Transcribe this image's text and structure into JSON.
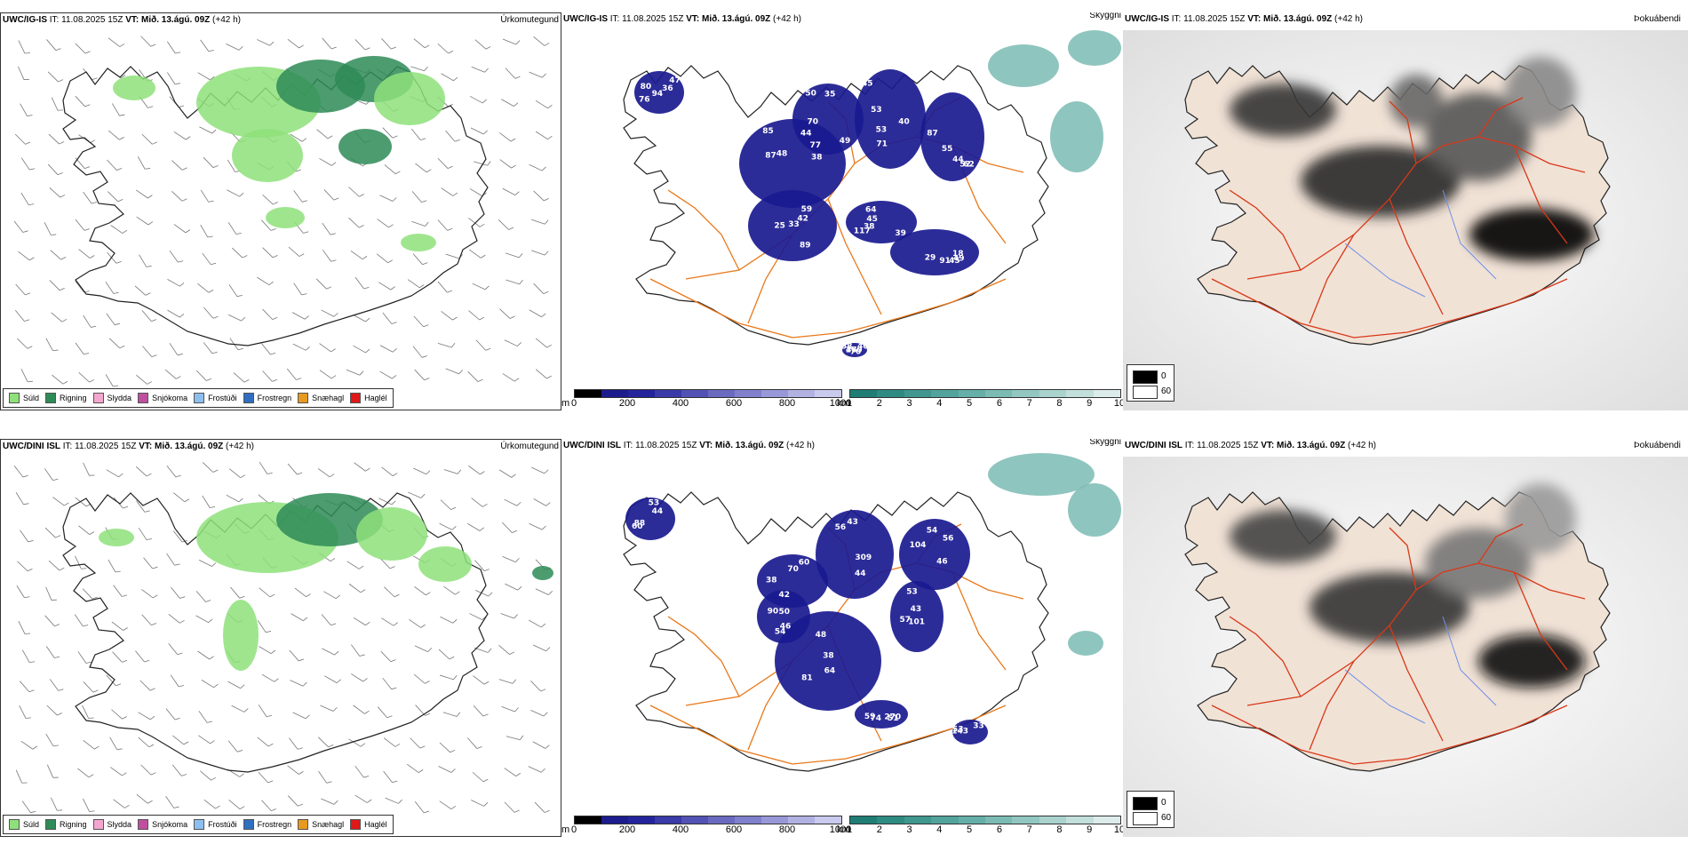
{
  "colors": {
    "drizzle": "#8ee07a",
    "rain": "#2e8b57",
    "sleet": "#f3a7d0",
    "snow": "#c04fa0",
    "freezing_drizzle": "#8cbff0",
    "freezing_rain": "#2f6fc0",
    "snow_pellets": "#e89a20",
    "hail": "#e01818",
    "cloud_dark": "#1a1a90",
    "road_orange": "#e8781a",
    "road_red": "#d83818",
    "river_blue": "#6f8fe8",
    "land_fog": "#f1e2d6"
  },
  "precip_legend": [
    {
      "label": "Súld",
      "color": "#8ee07a"
    },
    {
      "label": "Rigning",
      "color": "#2e8b57"
    },
    {
      "label": "Slydda",
      "color": "#f3a7d0"
    },
    {
      "label": "Snjókoma",
      "color": "#c04fa0"
    },
    {
      "label": "Frostúði",
      "color": "#8cbff0"
    },
    {
      "label": "Frostregn",
      "color": "#2f6fc0"
    },
    {
      "label": "Snæhagl",
      "color": "#e89a20"
    },
    {
      "label": "Haglél",
      "color": "#e01818"
    }
  ],
  "cloud_base_bar": {
    "unit": "m",
    "ticks": [
      "0",
      "200",
      "400",
      "600",
      "800",
      "1000"
    ],
    "colors": [
      "#000000",
      "#1c1c8c",
      "#24249c",
      "#3a3aa8",
      "#5252b4",
      "#6a6ac0",
      "#8080cc",
      "#9898d8",
      "#b2b2e2",
      "#cacaee"
    ]
  },
  "visibility_bar": {
    "unit": "km",
    "ticks": [
      "1",
      "2",
      "3",
      "4",
      "5",
      "6",
      "7",
      "8",
      "9",
      "10"
    ],
    "colors": [
      "#1f7d74",
      "#2e8b82",
      "#3f978f",
      "#52a39c",
      "#66afa8",
      "#7bbbb4",
      "#92c7c1",
      "#aad3ce",
      "#c3dfdb",
      "#dcecea"
    ]
  },
  "fog_legend": {
    "min": "0",
    "max": "60"
  },
  "rows": [
    {
      "model": "UWC/IG-IS",
      "it_label": "IT:",
      "it_value": "11.08.2025 15Z",
      "vt_label": "VT:",
      "vt_value": "Mið. 13.ágú. 09Z",
      "lead": "(+42 h)",
      "panel_names": [
        "Úrkomutegund",
        "Skyggni",
        "Þokuábendi"
      ],
      "cloud_numbers": [
        "94",
        "87",
        "50",
        "40",
        "62",
        "64",
        "29",
        "25",
        "47",
        "36",
        "38",
        "35",
        "45",
        "52",
        "45",
        "91",
        "33",
        "40",
        "47",
        "48",
        "49",
        "53",
        "44",
        "38",
        "45",
        "42",
        "70",
        "76",
        "77",
        "44",
        "53",
        "55",
        "117",
        "49",
        "59",
        "58",
        "80",
        "85",
        "70",
        "71",
        "87",
        "39",
        "18",
        "89",
        "160"
      ]
    },
    {
      "model": "UWC/DINI ISL",
      "it_label": "IT:",
      "it_value": "11.08.2025 15Z",
      "vt_label": "VT:",
      "vt_value": "Mið. 13.ágú. 09Z",
      "lead": "(+42 h)",
      "panel_names": [
        "Úrkomutegund",
        "Skyggni",
        "Þokuábendi"
      ],
      "cloud_numbers": [
        "60",
        "60",
        "56",
        "56",
        "64",
        "90",
        "57",
        "59",
        "33",
        "44",
        "38",
        "43",
        "46",
        "38",
        "54",
        "53",
        "51",
        "53",
        "88",
        "42",
        "44",
        "54",
        "48",
        "50",
        "43",
        "74",
        "143",
        "53",
        "70",
        "309",
        "104",
        "81",
        "46",
        "101",
        "270"
      ]
    }
  ]
}
